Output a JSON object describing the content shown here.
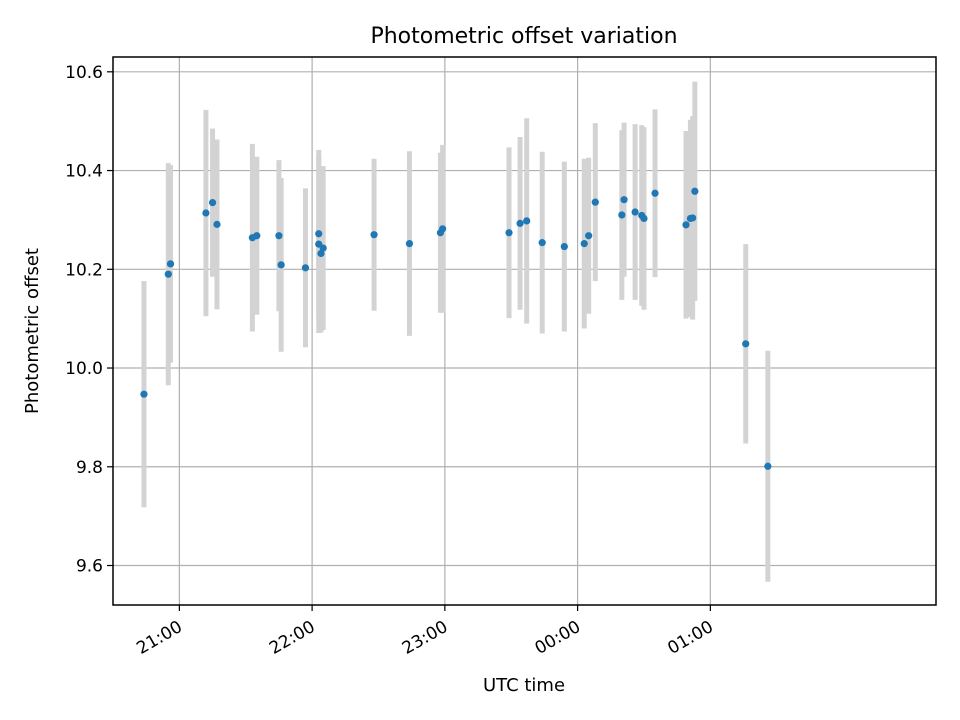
{
  "chart_data": {
    "type": "scatter",
    "title": "Photometric offset variation",
    "xlabel": "UTC time",
    "ylabel": "Photometric offset",
    "x_axis_kind": "time",
    "x_reference": "20:00",
    "xlim_hours": [
      20.5,
      26.7
    ],
    "ylim": [
      9.52,
      10.63
    ],
    "x_ticks": [
      {
        "h": 21,
        "label": "21:00"
      },
      {
        "h": 22,
        "label": "22:00"
      },
      {
        "h": 23,
        "label": "23:00"
      },
      {
        "h": 24,
        "label": "00:00"
      },
      {
        "h": 25,
        "label": "01:00"
      }
    ],
    "y_ticks": [
      {
        "v": 9.6,
        "label": "9.6"
      },
      {
        "v": 9.8,
        "label": "9.8"
      },
      {
        "v": 10.0,
        "label": "10.0"
      },
      {
        "v": 10.2,
        "label": "10.2"
      },
      {
        "v": 10.4,
        "label": "10.4"
      },
      {
        "v": 10.6,
        "label": "10.6"
      }
    ],
    "grid": true,
    "point_color": "#1f77b4",
    "errorbar_color": "#d3d3d3",
    "points": [
      {
        "x": "20:44",
        "y": 9.947,
        "err": 0.229
      },
      {
        "x": "20:55",
        "y": 10.19,
        "err": 0.225
      },
      {
        "x": "20:56",
        "y": 10.211,
        "err": 0.2
      },
      {
        "x": "21:12",
        "y": 10.314,
        "err": 0.209
      },
      {
        "x": "21:15",
        "y": 10.335,
        "err": 0.15
      },
      {
        "x": "21:17",
        "y": 10.291,
        "err": 0.172
      },
      {
        "x": "21:33",
        "y": 10.264,
        "err": 0.19
      },
      {
        "x": "21:35",
        "y": 10.268,
        "err": 0.16
      },
      {
        "x": "21:45",
        "y": 10.268,
        "err": 0.153
      },
      {
        "x": "21:46",
        "y": 10.209,
        "err": 0.176
      },
      {
        "x": "21:57",
        "y": 10.203,
        "err": 0.161
      },
      {
        "x": "22:03",
        "y": 10.272,
        "err": 0.17
      },
      {
        "x": "22:03",
        "y": 10.251,
        "err": 0.18
      },
      {
        "x": "22:04",
        "y": 10.232,
        "err": 0.16
      },
      {
        "x": "22:05",
        "y": 10.243,
        "err": 0.166
      },
      {
        "x": "22:28",
        "y": 10.27,
        "err": 0.154
      },
      {
        "x": "22:44",
        "y": 10.252,
        "err": 0.187
      },
      {
        "x": "22:58",
        "y": 10.274,
        "err": 0.162
      },
      {
        "x": "22:59",
        "y": 10.282,
        "err": 0.17
      },
      {
        "x": "23:29",
        "y": 10.274,
        "err": 0.173
      },
      {
        "x": "23:34",
        "y": 10.293,
        "err": 0.175
      },
      {
        "x": "23:37",
        "y": 10.298,
        "err": 0.208
      },
      {
        "x": "23:44",
        "y": 10.254,
        "err": 0.184
      },
      {
        "x": "23:54",
        "y": 10.246,
        "err": 0.172
      },
      {
        "x": "00:03",
        "y": 10.252,
        "err": 0.172
      },
      {
        "x": "00:05",
        "y": 10.268,
        "err": 0.158
      },
      {
        "x": "00:08",
        "y": 10.336,
        "err": 0.16
      },
      {
        "x": "00:20",
        "y": 10.31,
        "err": 0.172
      },
      {
        "x": "00:21",
        "y": 10.341,
        "err": 0.156
      },
      {
        "x": "00:26",
        "y": 10.316,
        "err": 0.178
      },
      {
        "x": "00:29",
        "y": 10.309,
        "err": 0.183
      },
      {
        "x": "00:30",
        "y": 10.303,
        "err": 0.185
      },
      {
        "x": "00:35",
        "y": 10.354,
        "err": 0.17
      },
      {
        "x": "00:49",
        "y": 10.29,
        "err": 0.19
      },
      {
        "x": "00:51",
        "y": 10.303,
        "err": 0.2
      },
      {
        "x": "00:52",
        "y": 10.304,
        "err": 0.206
      },
      {
        "x": "00:53",
        "y": 10.358,
        "err": 0.222
      },
      {
        "x": "01:16",
        "y": 10.049,
        "err": 0.202
      },
      {
        "x": "01:26",
        "y": 9.801,
        "err": 0.234
      }
    ]
  }
}
